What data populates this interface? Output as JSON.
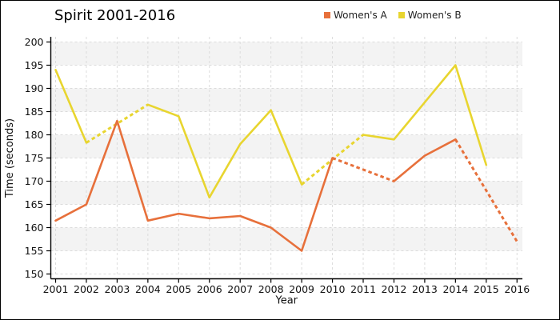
{
  "window": {
    "background": "#ffffff",
    "border_color": "#000000"
  },
  "chart": {
    "title": "Spirit 2001-2016",
    "x_axis_label": "Year",
    "y_axis_label": "Time (seconds)"
  },
  "legend": {
    "items": [
      {
        "label": "Women's A",
        "color": "#e7703b"
      },
      {
        "label": "Women's B",
        "color": "#e8d52f"
      }
    ]
  },
  "chart_data": {
    "type": "line",
    "title": "Spirit 2001-2016",
    "xlabel": "Year",
    "ylabel": "Time (seconds)",
    "x": [
      2001,
      2002,
      2003,
      2004,
      2005,
      2006,
      2007,
      2008,
      2009,
      2010,
      2011,
      2012,
      2013,
      2014,
      2015,
      2016
    ],
    "ylim": [
      150,
      200
    ],
    "ytick_step": 5,
    "grid": true,
    "legend_position": "top-right",
    "background_band_color": "#f3f3f3",
    "gridline_color": "#dcdcdc",
    "axis_color": "#000000",
    "dashed_meaning": "dashed segments indicate estimated/interpolated values",
    "series": [
      {
        "name": "Women's A",
        "color": "#e7703b",
        "values": [
          161.5,
          165,
          183,
          161.5,
          163,
          162,
          162.5,
          160,
          155,
          175,
          172.5,
          170,
          175.5,
          179,
          168,
          157
        ],
        "dashed_segments": [
          [
            2010,
            2012
          ],
          [
            2014,
            2016
          ]
        ]
      },
      {
        "name": "Women's B",
        "color": "#e8d52f",
        "values": [
          194,
          178.3,
          182.4,
          186.5,
          184,
          166.5,
          178,
          185.3,
          169.3,
          174.7,
          180,
          179,
          187,
          195,
          173.5,
          null
        ],
        "dashed_segments": [
          [
            2002,
            2004
          ],
          [
            2009,
            2011
          ]
        ]
      }
    ]
  }
}
